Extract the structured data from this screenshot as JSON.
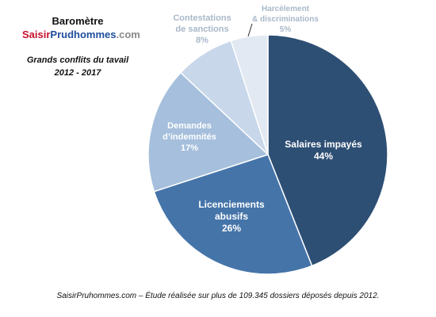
{
  "header": {
    "title": "Baromètre",
    "brand": {
      "part1": "Saisir",
      "part2": "Prudhommes",
      "part3": ".com"
    },
    "subtitle_line1": "Grands conflits du tavail",
    "subtitle_line2": "2012 - 2017"
  },
  "chart_data": {
    "type": "pie",
    "unit": "%",
    "slices": [
      {
        "label": "Salaires impayés",
        "value": 44,
        "color": "#2e4f74"
      },
      {
        "label": "Licenciements abusifs",
        "value": 26,
        "color": "#4574a9"
      },
      {
        "label": "Demandes d'indemnités",
        "value": 17,
        "color": "#a5bfdc"
      },
      {
        "label": "Contestations de sanctions",
        "value": 8,
        "color": "#c8d7ea"
      },
      {
        "label": "Harcèlement & discriminations",
        "value": 5,
        "color": "#e2e9f3"
      }
    ]
  },
  "footer": {
    "text": "SaisirPruhommes.com – Étude réalisée sur plus de 109.345 dossiers déposés depuis 2012."
  }
}
